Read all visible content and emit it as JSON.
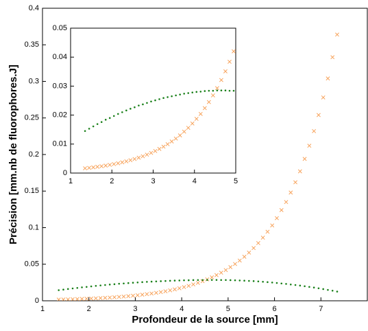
{
  "chart_data": {
    "type": "scatter",
    "xlabel": "Profondeur de la source [mm]",
    "ylabel": "Précision [mm.nb de fluorophores.J]",
    "xlim": [
      1,
      8
    ],
    "ylim": [
      0,
      0.4
    ],
    "xticks": [
      1,
      2,
      3,
      4,
      5,
      6,
      7
    ],
    "yticks": [
      0,
      0.05,
      0.1,
      0.15,
      0.2,
      0.25,
      0.3,
      0.35,
      0.4
    ],
    "x": [
      1.35,
      1.45,
      1.55,
      1.65,
      1.75,
      1.85,
      1.95,
      2.05,
      2.15,
      2.25,
      2.35,
      2.45,
      2.55,
      2.65,
      2.75,
      2.85,
      2.95,
      3.05,
      3.15,
      3.25,
      3.35,
      3.45,
      3.55,
      3.65,
      3.75,
      3.85,
      3.95,
      4.05,
      4.15,
      4.25,
      4.35,
      4.45,
      4.55,
      4.65,
      4.75,
      4.85,
      4.95,
      5.05,
      5.15,
      5.25,
      5.35,
      5.45,
      5.55,
      5.65,
      5.75,
      5.85,
      5.95,
      6.05,
      6.15,
      6.25,
      6.35,
      6.45,
      6.55,
      6.65,
      6.75,
      6.85,
      6.95,
      7.05,
      7.15,
      7.25,
      7.35
    ],
    "series": [
      {
        "marker": "x",
        "color": "#f7a35c",
        "values": [
          0.00165,
          0.0018,
          0.00197,
          0.00216,
          0.00236,
          0.00258,
          0.00282,
          0.00309,
          0.00338,
          0.0037,
          0.00405,
          0.00443,
          0.00485,
          0.0053,
          0.0058,
          0.00635,
          0.00695,
          0.0076,
          0.00832,
          0.0091,
          0.00996,
          0.0109,
          0.0119,
          0.013,
          0.0143,
          0.0156,
          0.0171,
          0.0187,
          0.0204,
          0.0224,
          0.0245,
          0.0268,
          0.0293,
          0.0321,
          0.0351,
          0.0384,
          0.042,
          0.046,
          0.0503,
          0.055,
          0.0602,
          0.0659,
          0.0721,
          0.0789,
          0.0863,
          0.0944,
          0.103,
          0.113,
          0.124,
          0.135,
          0.148,
          0.162,
          0.177,
          0.194,
          0.212,
          0.232,
          0.254,
          0.278,
          0.304,
          0.333,
          0.364
        ]
      },
      {
        "marker": "dot",
        "color": "#1a801a",
        "values": [
          0.0145,
          0.0153,
          0.0161,
          0.0169,
          0.0176,
          0.0184,
          0.019,
          0.0197,
          0.0204,
          0.021,
          0.0216,
          0.0222,
          0.0227,
          0.0233,
          0.0237,
          0.0242,
          0.0247,
          0.0251,
          0.0255,
          0.0259,
          0.0262,
          0.0265,
          0.0268,
          0.0271,
          0.0274,
          0.0276,
          0.0278,
          0.028,
          0.0281,
          0.0283,
          0.0284,
          0.0284,
          0.0285,
          0.0285,
          0.0285,
          0.0284,
          0.0284,
          0.0282,
          0.028,
          0.0278,
          0.0275,
          0.0272,
          0.0269,
          0.0265,
          0.026,
          0.0255,
          0.025,
          0.0244,
          0.0237,
          0.0231,
          0.0223,
          0.0216,
          0.0208,
          0.0199,
          0.019,
          0.0181,
          0.0171,
          0.016,
          0.0149,
          0.0138,
          0.0126
        ]
      }
    ],
    "inset": {
      "xlim": [
        1,
        5
      ],
      "ylim": [
        0,
        0.05
      ],
      "xticks": [
        1,
        2,
        3,
        4,
        5
      ],
      "yticks": [
        0,
        0.01,
        0.02,
        0.03,
        0.04,
        0.05
      ]
    }
  }
}
